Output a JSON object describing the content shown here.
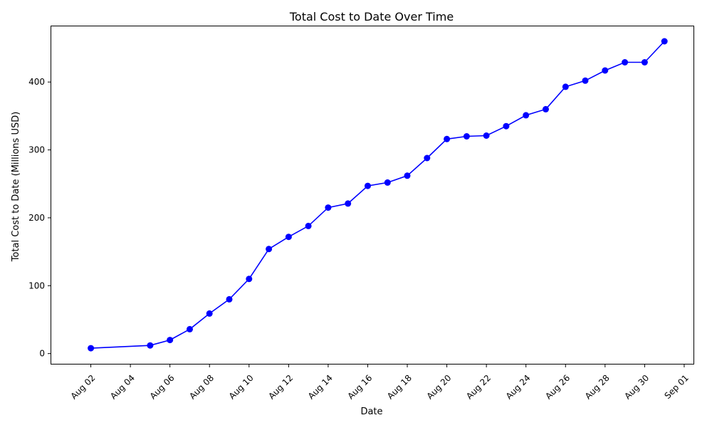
{
  "chart_data": {
    "type": "line",
    "title": "Total Cost to Date Over Time",
    "xlabel": "Date",
    "ylabel": "Total Cost to Date (Millions USD)",
    "x_tick_labels": [
      "Aug 02",
      "Aug 04",
      "Aug 06",
      "Aug 08",
      "Aug 10",
      "Aug 12",
      "Aug 14",
      "Aug 16",
      "Aug 18",
      "Aug 20",
      "Aug 22",
      "Aug 24",
      "Aug 26",
      "Aug 28",
      "Aug 30",
      "Sep 01"
    ],
    "y_ticks": [
      0,
      100,
      200,
      300,
      400
    ],
    "xlim": [
      "2023-07-31",
      "2023-09-01"
    ],
    "ylim": [
      -15,
      482
    ],
    "grid": false,
    "color": "#0000ff",
    "series": [
      {
        "points": [
          {
            "x": "2023-08-02",
            "y": 8
          },
          {
            "x": "2023-08-05",
            "y": 12
          },
          {
            "x": "2023-08-06",
            "y": 20
          },
          {
            "x": "2023-08-07",
            "y": 36
          },
          {
            "x": "2023-08-08",
            "y": 59
          },
          {
            "x": "2023-08-09",
            "y": 80
          },
          {
            "x": "2023-08-10",
            "y": 110
          },
          {
            "x": "2023-08-11",
            "y": 154
          },
          {
            "x": "2023-08-12",
            "y": 172
          },
          {
            "x": "2023-08-13",
            "y": 188
          },
          {
            "x": "2023-08-14",
            "y": 215
          },
          {
            "x": "2023-08-15",
            "y": 221
          },
          {
            "x": "2023-08-16",
            "y": 247
          },
          {
            "x": "2023-08-17",
            "y": 252
          },
          {
            "x": "2023-08-18",
            "y": 262
          },
          {
            "x": "2023-08-19",
            "y": 288
          },
          {
            "x": "2023-08-20",
            "y": 316
          },
          {
            "x": "2023-08-21",
            "y": 320
          },
          {
            "x": "2023-08-22",
            "y": 321
          },
          {
            "x": "2023-08-23",
            "y": 335
          },
          {
            "x": "2023-08-24",
            "y": 351
          },
          {
            "x": "2023-08-25",
            "y": 360
          },
          {
            "x": "2023-08-26",
            "y": 393
          },
          {
            "x": "2023-08-27",
            "y": 402
          },
          {
            "x": "2023-08-28",
            "y": 417
          },
          {
            "x": "2023-08-29",
            "y": 429
          },
          {
            "x": "2023-08-30",
            "y": 429
          },
          {
            "x": "2023-08-31",
            "y": 460
          }
        ]
      }
    ]
  }
}
